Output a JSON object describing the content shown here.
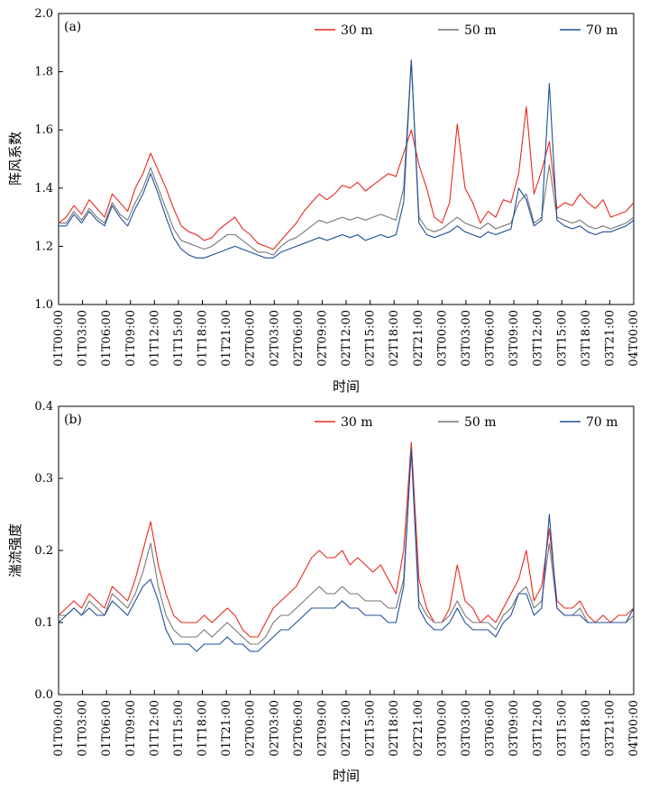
{
  "chart_data": [
    {
      "type": "line",
      "panel_label": "(a)",
      "ylabel": "阵风系数",
      "xlabel": "时间",
      "ylim": [
        1.0,
        2.0
      ],
      "yticks": [
        "1.0",
        "1.2",
        "1.4",
        "1.6",
        "1.8",
        "2.0"
      ],
      "x_tick_labels": [
        "01T00:00",
        "01T03:00",
        "01T06:00",
        "01T09:00",
        "01T12:00",
        "01T15:00",
        "01T18:00",
        "01T21:00",
        "02T00:00",
        "02T03:00",
        "02T06:00",
        "02T09:00",
        "02T12:00",
        "02T15:00",
        "02T18:00",
        "02T21:00",
        "03T00:00",
        "03T03:00",
        "03T06:00",
        "03T09:00",
        "03T12:00",
        "03T15:00",
        "03T18:00",
        "03T21:00",
        "04T00:00"
      ],
      "legend": [
        "30 m",
        "50 m",
        "70 m"
      ],
      "series": [
        {
          "name": "30 m",
          "color": "#e8291c",
          "values": [
            1.28,
            1.3,
            1.34,
            1.31,
            1.36,
            1.33,
            1.3,
            1.38,
            1.35,
            1.32,
            1.4,
            1.45,
            1.52,
            1.46,
            1.4,
            1.33,
            1.27,
            1.25,
            1.24,
            1.22,
            1.23,
            1.26,
            1.28,
            1.3,
            1.26,
            1.24,
            1.21,
            1.2,
            1.19,
            1.22,
            1.25,
            1.28,
            1.32,
            1.35,
            1.38,
            1.36,
            1.38,
            1.41,
            1.4,
            1.42,
            1.39,
            1.41,
            1.43,
            1.45,
            1.44,
            1.52,
            1.6,
            1.48,
            1.4,
            1.3,
            1.28,
            1.35,
            1.62,
            1.4,
            1.35,
            1.28,
            1.32,
            1.3,
            1.36,
            1.35,
            1.45,
            1.68,
            1.38,
            1.46,
            1.56,
            1.33,
            1.35,
            1.34,
            1.38,
            1.35,
            1.33,
            1.36,
            1.3,
            1.31,
            1.32,
            1.35
          ]
        },
        {
          "name": "50 m",
          "color": "#777777",
          "values": [
            1.28,
            1.28,
            1.32,
            1.29,
            1.33,
            1.3,
            1.28,
            1.35,
            1.31,
            1.29,
            1.35,
            1.4,
            1.47,
            1.4,
            1.33,
            1.26,
            1.22,
            1.21,
            1.2,
            1.19,
            1.2,
            1.22,
            1.24,
            1.24,
            1.22,
            1.2,
            1.18,
            1.18,
            1.17,
            1.2,
            1.22,
            1.23,
            1.25,
            1.27,
            1.29,
            1.28,
            1.29,
            1.3,
            1.29,
            1.3,
            1.29,
            1.3,
            1.31,
            1.3,
            1.29,
            1.4,
            1.84,
            1.3,
            1.26,
            1.25,
            1.26,
            1.28,
            1.3,
            1.28,
            1.27,
            1.26,
            1.28,
            1.26,
            1.27,
            1.28,
            1.35,
            1.38,
            1.28,
            1.3,
            1.48,
            1.3,
            1.29,
            1.28,
            1.29,
            1.27,
            1.26,
            1.27,
            1.26,
            1.27,
            1.28,
            1.3
          ]
        },
        {
          "name": "70 m",
          "color": "#1f4e9c",
          "values": [
            1.27,
            1.27,
            1.31,
            1.28,
            1.32,
            1.29,
            1.27,
            1.34,
            1.3,
            1.27,
            1.33,
            1.38,
            1.45,
            1.38,
            1.3,
            1.23,
            1.19,
            1.17,
            1.16,
            1.16,
            1.17,
            1.18,
            1.19,
            1.2,
            1.19,
            1.18,
            1.17,
            1.16,
            1.16,
            1.18,
            1.19,
            1.2,
            1.21,
            1.22,
            1.23,
            1.22,
            1.23,
            1.24,
            1.23,
            1.24,
            1.22,
            1.23,
            1.24,
            1.23,
            1.24,
            1.35,
            1.84,
            1.28,
            1.24,
            1.23,
            1.24,
            1.25,
            1.27,
            1.25,
            1.24,
            1.23,
            1.25,
            1.24,
            1.25,
            1.26,
            1.4,
            1.36,
            1.27,
            1.29,
            1.76,
            1.29,
            1.27,
            1.26,
            1.27,
            1.25,
            1.24,
            1.25,
            1.25,
            1.26,
            1.27,
            1.29
          ]
        }
      ]
    },
    {
      "type": "line",
      "panel_label": "(b)",
      "ylabel": "湍流强度",
      "xlabel": "时间",
      "ylim": [
        0.0,
        0.4
      ],
      "yticks": [
        "0.0",
        "0.1",
        "0.2",
        "0.3",
        "0.4"
      ],
      "x_tick_labels": [
        "01T00:00",
        "01T03:00",
        "01T06:00",
        "01T09:00",
        "01T12:00",
        "01T15:00",
        "01T18:00",
        "01T21:00",
        "02T00:00",
        "02T03:00",
        "02T06:00",
        "02T09:00",
        "02T12:00",
        "02T15:00",
        "02T18:00",
        "02T21:00",
        "03T00:00",
        "03T03:00",
        "03T06:00",
        "03T09:00",
        "03T12:00",
        "03T15:00",
        "03T18:00",
        "03T21:00",
        "04T00:00"
      ],
      "legend": [
        "30 m",
        "50 m",
        "70 m"
      ],
      "series": [
        {
          "name": "30 m",
          "color": "#e8291c",
          "values": [
            0.11,
            0.12,
            0.13,
            0.12,
            0.14,
            0.13,
            0.12,
            0.15,
            0.14,
            0.13,
            0.16,
            0.2,
            0.24,
            0.18,
            0.14,
            0.11,
            0.1,
            0.1,
            0.1,
            0.11,
            0.1,
            0.11,
            0.12,
            0.11,
            0.09,
            0.08,
            0.08,
            0.1,
            0.12,
            0.13,
            0.14,
            0.15,
            0.17,
            0.19,
            0.2,
            0.19,
            0.19,
            0.2,
            0.18,
            0.19,
            0.18,
            0.17,
            0.18,
            0.16,
            0.14,
            0.2,
            0.35,
            0.16,
            0.12,
            0.1,
            0.1,
            0.12,
            0.18,
            0.13,
            0.12,
            0.1,
            0.11,
            0.1,
            0.12,
            0.14,
            0.16,
            0.2,
            0.13,
            0.15,
            0.23,
            0.13,
            0.12,
            0.12,
            0.13,
            0.11,
            0.1,
            0.11,
            0.1,
            0.11,
            0.11,
            0.12
          ]
        },
        {
          "name": "50 m",
          "color": "#777777",
          "values": [
            0.11,
            0.11,
            0.12,
            0.11,
            0.13,
            0.12,
            0.11,
            0.14,
            0.13,
            0.12,
            0.14,
            0.17,
            0.21,
            0.15,
            0.11,
            0.09,
            0.08,
            0.08,
            0.08,
            0.09,
            0.08,
            0.09,
            0.1,
            0.09,
            0.08,
            0.07,
            0.07,
            0.08,
            0.1,
            0.11,
            0.11,
            0.12,
            0.13,
            0.14,
            0.15,
            0.14,
            0.14,
            0.15,
            0.14,
            0.14,
            0.13,
            0.13,
            0.13,
            0.12,
            0.12,
            0.16,
            0.34,
            0.13,
            0.11,
            0.1,
            0.1,
            0.11,
            0.13,
            0.11,
            0.1,
            0.1,
            0.1,
            0.09,
            0.11,
            0.12,
            0.14,
            0.15,
            0.12,
            0.13,
            0.21,
            0.12,
            0.11,
            0.11,
            0.12,
            0.1,
            0.1,
            0.1,
            0.1,
            0.1,
            0.1,
            0.11
          ]
        },
        {
          "name": "70 m",
          "color": "#1f4e9c",
          "values": [
            0.1,
            0.11,
            0.12,
            0.11,
            0.12,
            0.11,
            0.11,
            0.13,
            0.12,
            0.11,
            0.13,
            0.15,
            0.16,
            0.13,
            0.09,
            0.07,
            0.07,
            0.07,
            0.06,
            0.07,
            0.07,
            0.07,
            0.08,
            0.07,
            0.07,
            0.06,
            0.06,
            0.07,
            0.08,
            0.09,
            0.09,
            0.1,
            0.11,
            0.12,
            0.12,
            0.12,
            0.12,
            0.13,
            0.12,
            0.12,
            0.11,
            0.11,
            0.11,
            0.1,
            0.1,
            0.15,
            0.34,
            0.12,
            0.1,
            0.09,
            0.09,
            0.1,
            0.12,
            0.1,
            0.09,
            0.09,
            0.09,
            0.08,
            0.1,
            0.11,
            0.14,
            0.14,
            0.11,
            0.12,
            0.25,
            0.12,
            0.11,
            0.11,
            0.11,
            0.1,
            0.1,
            0.1,
            0.1,
            0.1,
            0.1,
            0.12
          ]
        }
      ]
    }
  ]
}
